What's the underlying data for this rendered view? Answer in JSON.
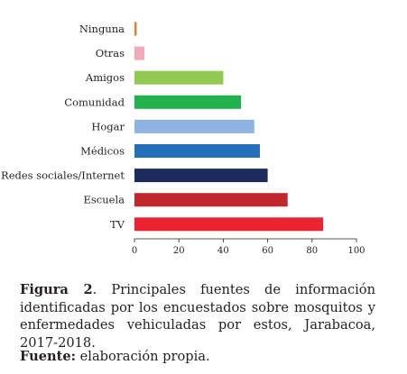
{
  "chart_data": {
    "type": "bar",
    "orientation": "horizontal",
    "categories": [
      "Ninguna",
      "Otras",
      "Amigos",
      "Comunidad",
      "Hogar",
      "Médicos",
      "Redes sociales/Internet",
      "Escuela",
      "TV"
    ],
    "values": [
      1,
      4.5,
      40,
      48,
      54,
      56.5,
      60,
      69,
      85
    ],
    "colors": [
      "#e87d22",
      "#f2a9b8",
      "#92c953",
      "#22b14c",
      "#8fb4e3",
      "#2470b8",
      "#1d2b5c",
      "#c1272d",
      "#ec2330"
    ],
    "xlim": [
      0,
      100
    ],
    "xticks": [
      0,
      20,
      40,
      60,
      80,
      100
    ],
    "title": "",
    "xlabel": "",
    "ylabel": "",
    "grid": false
  },
  "caption": {
    "label": "Figura 2",
    "text": ". Principales fuentes de información identificadas por los encuestados sobre mosquitos y enfermedades vehiculadas por estos, Jarabacoa, 2017-2018."
  },
  "source": {
    "label": "Fuente:",
    "text": " elaboración propia."
  }
}
